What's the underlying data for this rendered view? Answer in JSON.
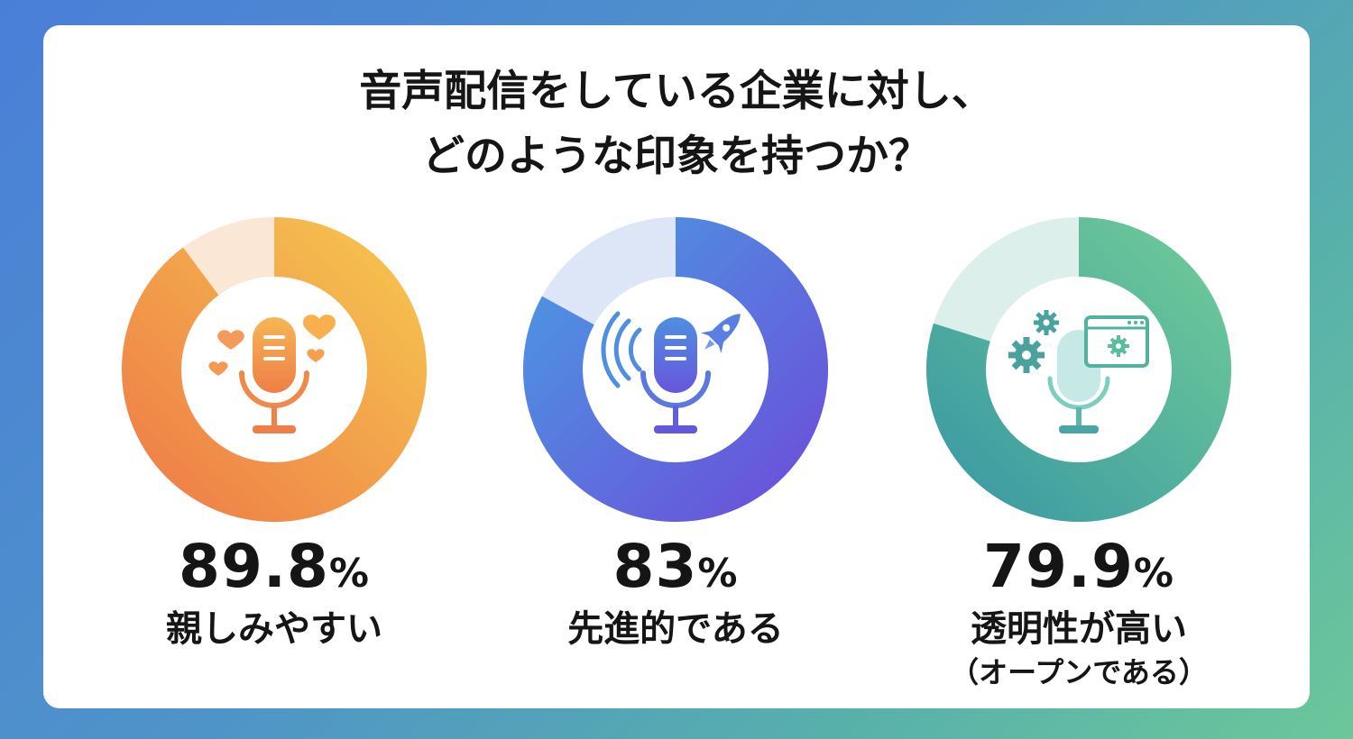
{
  "title": {
    "line1": "音声配信をしている企業に対し、",
    "line2": "どのような印象を持つか？"
  },
  "chart_data": {
    "type": "pie",
    "title": "音声配信をしている企業に対し、どのような印象を持つか？",
    "unit": "%",
    "items": [
      {
        "value": 89.8,
        "value_label": "89.8",
        "label": "親しみやすい",
        "sublabel": "",
        "icon": "microphone-hearts-icon",
        "colors": {
          "start": "#f6c14e",
          "end": "#ee8548",
          "track": "#fbe7d6"
        }
      },
      {
        "value": 83,
        "value_label": "83",
        "label": "先進的である",
        "sublabel": "",
        "icon": "microphone-rocket-icon",
        "colors": {
          "start": "#4e8ee0",
          "end": "#6a58dc",
          "track": "#dce6f7"
        }
      },
      {
        "value": 79.9,
        "value_label": "79.9",
        "label": "透明性が高い",
        "sublabel": "（オープンである）",
        "icon": "microphone-gears-icon",
        "colors": {
          "start": "#6cc79a",
          "end": "#3f9ea0",
          "track": "#dcefea"
        }
      }
    ]
  }
}
